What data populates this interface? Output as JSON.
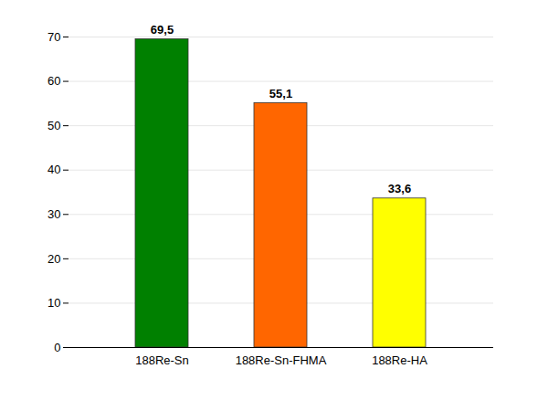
{
  "chart_data": {
    "type": "bar",
    "categories": [
      "188Re-Sn",
      "188Re-Sn-FHMA",
      "188Re-HA"
    ],
    "values": [
      69.5,
      55.1,
      33.6
    ],
    "value_labels": [
      "69,5",
      "55,1",
      "33,6"
    ],
    "colors": [
      "#008000",
      "#ff6600",
      "#ffff00"
    ],
    "ylim": [
      0,
      70
    ],
    "yticks": [
      0,
      10,
      20,
      30,
      40,
      50,
      60,
      70
    ],
    "grid": true,
    "data_labels": true
  }
}
